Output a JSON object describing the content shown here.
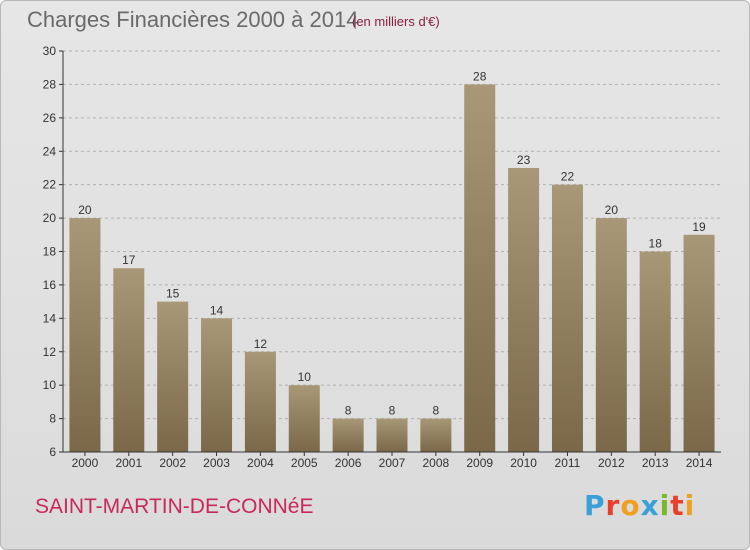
{
  "header": {
    "title": "Charges Financières 2000 à 2014",
    "unit": "(en milliers d'€)"
  },
  "footer": {
    "commune": "SAINT-MARTIN-DE-CONNéE",
    "brand": "Proxiti",
    "brand_letters": [
      "P",
      "r",
      "o",
      "x",
      "i",
      "t",
      "i"
    ],
    "brand_colors": [
      "#3aa0d8",
      "#e8402a",
      "#f0a020",
      "#3aa0d8",
      "#78b82a",
      "#e8402a",
      "#f0a020"
    ]
  },
  "colors": {
    "bar_light": "#a89878",
    "bar_dark": "#7a6848",
    "axis": "#333333",
    "grid": "#b0b0b0"
  },
  "chart_data": {
    "type": "bar",
    "title": "Charges Financières 2000 à 2014",
    "categories": [
      "2000",
      "2001",
      "2002",
      "2003",
      "2004",
      "2005",
      "2006",
      "2007",
      "2008",
      "2009",
      "2010",
      "2011",
      "2012",
      "2013",
      "2014"
    ],
    "values": [
      20,
      17,
      15,
      14,
      12,
      10,
      8,
      8,
      8,
      28,
      23,
      22,
      20,
      18,
      19
    ],
    "ylim": [
      6,
      30
    ],
    "yticks": [
      6,
      8,
      10,
      12,
      14,
      16,
      18,
      20,
      22,
      24,
      26,
      28,
      30
    ],
    "grid": true,
    "xlabel": "",
    "ylabel": ""
  }
}
